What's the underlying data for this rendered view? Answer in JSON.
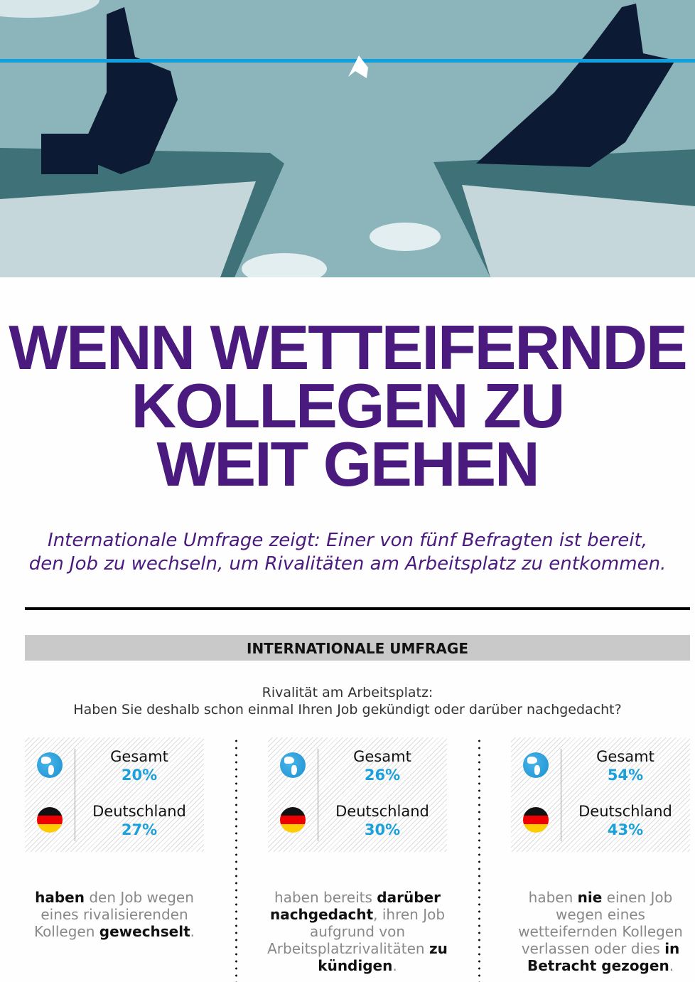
{
  "title_lines": [
    "WENN WETTEIFERNDE",
    "KOLLEGEN ZU",
    "WEIT GEHEN"
  ],
  "subtitle_lines": [
    "Internationale Umfrage zeigt: Einer von fünf Befragten ist bereit,",
    "den Job zu wechseln, um Rivalitäten am Arbeitsplatz zu entkommen."
  ],
  "section_label": "INTERNATIONALE UMFRAGE",
  "question_lines": [
    "Rivalität am Arbeitsplatz:",
    "Haben Sie deshalb schon einmal Ihren Job gekündigt oder darüber nachgedacht?"
  ],
  "colors": {
    "title": "#4b1a7e",
    "percent": "#1aa0dc",
    "rope": "#0fa0e0"
  },
  "columns": [
    {
      "global_label": "Gesamt",
      "global_value": "20%",
      "country_label": "Deutschland",
      "country_value": "27%",
      "description": [
        {
          "t": "haben",
          "b": true
        },
        {
          "t": " den Job wegen eines rivalisierenden Kollegen "
        },
        {
          "t": "gewechselt",
          "b": true
        },
        {
          "t": "."
        }
      ]
    },
    {
      "global_label": "Gesamt",
      "global_value": "26%",
      "country_label": "Deutschland",
      "country_value": "30%",
      "description": [
        {
          "t": "haben bereits "
        },
        {
          "t": "darüber nachgedacht",
          "b": true
        },
        {
          "t": ", ihren Job aufgrund von Arbeitsplatzrivalitäten "
        },
        {
          "t": "zu kündigen",
          "b": true
        },
        {
          "t": "."
        }
      ]
    },
    {
      "global_label": "Gesamt",
      "global_value": "54%",
      "country_label": "Deutschland",
      "country_value": "43%",
      "description": [
        {
          "t": "haben "
        },
        {
          "t": "nie",
          "b": true
        },
        {
          "t": " einen Job wegen eines wetteifernden Kollegen verlassen oder dies "
        },
        {
          "t": "in Betracht gezogen",
          "b": true
        },
        {
          "t": "."
        }
      ]
    }
  ]
}
